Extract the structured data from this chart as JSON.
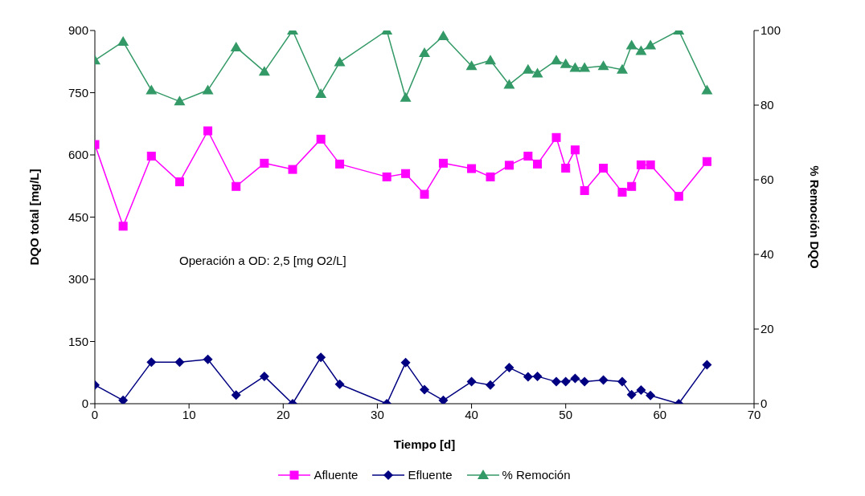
{
  "chart_data": {
    "type": "line",
    "xlabel": "Tiempo [d]",
    "ylabel": "DQO total [mg/L]",
    "y2label": "% Remoción DQO",
    "x": [
      0,
      3,
      6,
      9,
      12,
      15,
      18,
      21,
      24,
      26,
      31,
      33,
      35,
      37,
      40,
      42,
      44,
      46,
      47,
      49,
      50,
      51,
      52,
      54,
      56,
      57,
      58,
      59,
      62,
      65
    ],
    "series": [
      {
        "name": "Afluente",
        "color": "#ff00ff",
        "marker": "square",
        "values": [
          625,
          428,
          597,
          535,
          658,
          524,
          580,
          565,
          638,
          578,
          547,
          555,
          505,
          580,
          567,
          547,
          575,
          597,
          578,
          642,
          568,
          612,
          514,
          568,
          510,
          524,
          576,
          576,
          500,
          584
        ]
      },
      {
        "name": "Efluente",
        "color": "#000080",
        "marker": "diamond",
        "values": [
          45,
          8,
          100,
          100,
          107,
          21,
          66,
          0,
          112,
          47,
          0,
          99,
          34,
          8,
          53,
          45,
          87,
          65,
          66,
          53,
          53,
          61,
          53,
          57,
          53,
          22,
          33,
          20,
          0,
          94
        ]
      },
      {
        "name": "% Remoción",
        "color": "#339966",
        "marker": "triangle",
        "axis": "y2",
        "values": [
          92,
          97,
          84,
          81,
          84,
          95.5,
          89,
          100,
          83,
          91.5,
          100,
          82,
          94,
          98.5,
          90.5,
          92,
          85.5,
          89.5,
          88.5,
          92,
          91,
          90,
          90,
          90.5,
          89.5,
          96,
          94.5,
          96,
          100,
          84
        ]
      }
    ],
    "xlim": [
      0,
      70
    ],
    "xticks": [
      0,
      10,
      20,
      30,
      40,
      50,
      60,
      70
    ],
    "ylim": [
      0,
      900
    ],
    "yticks": [
      0,
      150,
      300,
      450,
      600,
      750,
      900
    ],
    "y2lim": [
      0,
      100
    ],
    "y2ticks": [
      0,
      20,
      40,
      60,
      80,
      100
    ],
    "annotations": [
      "Operación a OD: 2,5 [mg O2/L]"
    ],
    "legend": "bottom",
    "line_style": "solid"
  }
}
